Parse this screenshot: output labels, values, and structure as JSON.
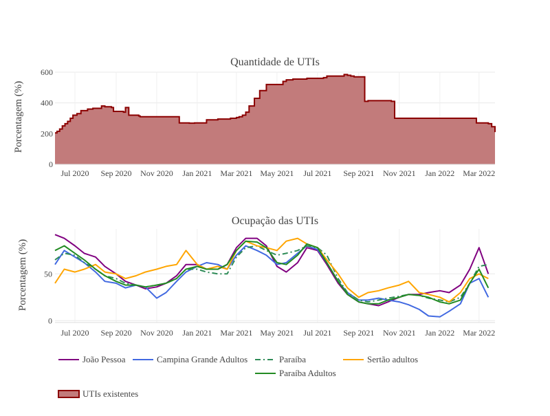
{
  "chart_data": [
    {
      "type": "area",
      "title": "Quantidade de UTIs",
      "xlabel": "",
      "ylabel": "Porcentagem (%)",
      "ylim": [
        0,
        600
      ],
      "yticks": [
        0,
        200,
        400,
        600
      ],
      "xticks": [
        {
          "label": "Jul 2020",
          "date": "2020-07-01"
        },
        {
          "label": "Sep 2020",
          "date": "2020-09-01"
        },
        {
          "label": "Nov 2020",
          "date": "2020-11-01"
        },
        {
          "label": "Jan 2021",
          "date": "2021-01-01"
        },
        {
          "label": "Mar 2021",
          "date": "2021-03-01"
        },
        {
          "label": "May 2021",
          "date": "2021-05-01"
        },
        {
          "label": "Jul 2021",
          "date": "2021-07-01"
        },
        {
          "label": "Sep 2021",
          "date": "2021-09-01"
        },
        {
          "label": "Nov 2021",
          "date": "2021-11-01"
        },
        {
          "label": "Jan 2022",
          "date": "2022-01-01"
        },
        {
          "label": "Mar 2022",
          "date": "2022-03-01"
        }
      ],
      "xlim": [
        "2020-06-01",
        "2022-03-25"
      ],
      "grid": true,
      "series": [
        {
          "name": "UTIs existentes",
          "color": "#8b0000",
          "fill": "#c27b7b",
          "x": [
            "2020-06-01",
            "2020-06-04",
            "2020-06-08",
            "2020-06-12",
            "2020-06-16",
            "2020-06-20",
            "2020-06-24",
            "2020-06-28",
            "2020-07-04",
            "2020-07-10",
            "2020-07-20",
            "2020-07-28",
            "2020-08-10",
            "2020-08-15",
            "2020-08-25",
            "2020-08-28",
            "2020-09-12",
            "2020-09-15",
            "2020-09-20",
            "2020-10-05",
            "2020-10-07",
            "2020-12-01",
            "2020-12-05",
            "2020-12-20",
            "2020-12-28",
            "2021-01-15",
            "2021-02-01",
            "2021-02-20",
            "2021-02-22",
            "2021-03-01",
            "2021-03-05",
            "2021-03-10",
            "2021-03-15",
            "2021-03-20",
            "2021-03-28",
            "2021-04-05",
            "2021-04-15",
            "2021-05-10",
            "2021-05-15",
            "2021-05-25",
            "2021-06-10",
            "2021-06-15",
            "2021-07-10",
            "2021-07-15",
            "2021-08-10",
            "2021-08-15",
            "2021-08-20",
            "2021-08-25",
            "2021-09-10",
            "2021-09-15",
            "2021-10-20",
            "2021-10-25",
            "2021-12-05",
            "2022-02-01",
            "2022-02-05",
            "2022-02-20",
            "2022-02-25",
            "2022-03-15",
            "2022-03-20",
            "2022-03-25"
          ],
          "values": [
            205,
            215,
            230,
            250,
            265,
            280,
            300,
            320,
            330,
            350,
            360,
            365,
            380,
            375,
            370,
            345,
            340,
            370,
            320,
            315,
            310,
            310,
            270,
            268,
            270,
            290,
            295,
            300,
            300,
            305,
            310,
            320,
            340,
            380,
            430,
            480,
            520,
            540,
            550,
            555,
            555,
            560,
            565,
            575,
            585,
            580,
            575,
            570,
            410,
            415,
            410,
            300,
            300,
            300,
            300,
            300,
            270,
            265,
            245,
            210
          ]
        }
      ]
    },
    {
      "type": "line",
      "title": "Ocupação das UTIs",
      "xlabel": "",
      "ylabel": "Porcentagem (%)",
      "ylim": [
        -2,
        98
      ],
      "yticks": [
        0,
        50
      ],
      "xticks": [
        {
          "label": "Jul 2020",
          "date": "2020-07-01"
        },
        {
          "label": "Sep 2020",
          "date": "2020-09-01"
        },
        {
          "label": "Nov 2020",
          "date": "2020-11-01"
        },
        {
          "label": "Jan 2021",
          "date": "2021-01-01"
        },
        {
          "label": "Mar 2021",
          "date": "2021-03-01"
        },
        {
          "label": "May 2021",
          "date": "2021-05-01"
        },
        {
          "label": "Jul 2021",
          "date": "2021-07-01"
        },
        {
          "label": "Sep 2021",
          "date": "2021-09-01"
        },
        {
          "label": "Nov 2021",
          "date": "2021-11-01"
        },
        {
          "label": "Jan 2022",
          "date": "2022-01-01"
        },
        {
          "label": "Mar 2022",
          "date": "2022-03-01"
        }
      ],
      "xlim": [
        "2020-06-01",
        "2022-03-25"
      ],
      "grid": true,
      "dates": [
        "2020-06-01",
        "2020-06-15",
        "2020-07-01",
        "2020-07-15",
        "2020-08-01",
        "2020-08-15",
        "2020-09-01",
        "2020-09-15",
        "2020-10-01",
        "2020-10-15",
        "2020-11-01",
        "2020-11-15",
        "2020-12-01",
        "2020-12-15",
        "2021-01-01",
        "2021-01-15",
        "2021-02-01",
        "2021-02-15",
        "2021-03-01",
        "2021-03-15",
        "2021-04-01",
        "2021-04-15",
        "2021-05-01",
        "2021-05-15",
        "2021-06-01",
        "2021-06-15",
        "2021-07-01",
        "2021-07-15",
        "2021-08-01",
        "2021-08-15",
        "2021-09-01",
        "2021-09-15",
        "2021-10-01",
        "2021-10-15",
        "2021-11-01",
        "2021-11-15",
        "2021-12-01",
        "2021-12-15",
        "2022-01-01",
        "2022-01-15",
        "2022-02-01",
        "2022-02-15",
        "2022-03-01",
        "2022-03-15"
      ],
      "series": [
        {
          "name": "João Pessoa",
          "color": "#800080",
          "dash": "",
          "values": [
            92,
            88,
            80,
            72,
            68,
            58,
            50,
            42,
            38,
            34,
            36,
            40,
            48,
            60,
            60,
            55,
            55,
            60,
            78,
            88,
            88,
            80,
            58,
            52,
            62,
            78,
            75,
            60,
            40,
            28,
            20,
            18,
            16,
            20,
            25,
            28,
            28,
            30,
            32,
            30,
            38,
            55,
            78,
            50
          ]
        },
        {
          "name": "Campina Grande Adultos",
          "color": "#4169e1",
          "dash": "",
          "values": [
            60,
            75,
            68,
            62,
            52,
            42,
            40,
            35,
            38,
            36,
            24,
            30,
            42,
            52,
            58,
            62,
            60,
            55,
            70,
            80,
            75,
            70,
            60,
            62,
            72,
            80,
            76,
            62,
            42,
            30,
            22,
            22,
            24,
            22,
            20,
            17,
            12,
            5,
            4,
            10,
            18,
            40,
            45,
            25
          ]
        },
        {
          "name": "Paraíba",
          "color": "#2e8b57",
          "dash": "8,4,2,4",
          "values": [
            65,
            72,
            70,
            62,
            55,
            48,
            45,
            40,
            38,
            36,
            38,
            40,
            45,
            55,
            55,
            52,
            50,
            50,
            68,
            78,
            80,
            75,
            70,
            72,
            75,
            80,
            78,
            70,
            45,
            30,
            22,
            20,
            22,
            24,
            26,
            28,
            27,
            24,
            22,
            20,
            25,
            40,
            58,
            60
          ]
        },
        {
          "name": "Sertão adultos",
          "color": "#ffa500",
          "dash": "",
          "values": [
            40,
            55,
            52,
            55,
            60,
            52,
            50,
            45,
            48,
            52,
            55,
            58,
            60,
            75,
            60,
            55,
            58,
            55,
            75,
            85,
            80,
            78,
            75,
            85,
            88,
            82,
            78,
            65,
            50,
            35,
            25,
            30,
            32,
            35,
            38,
            42,
            30,
            28,
            25,
            20,
            30,
            45,
            50,
            45
          ]
        },
        {
          "name": "Paraíba Adultos",
          "color": "#228b22",
          "dash": "",
          "values": [
            75,
            80,
            72,
            65,
            55,
            48,
            42,
            38,
            38,
            36,
            38,
            40,
            45,
            55,
            58,
            55,
            55,
            60,
            75,
            85,
            84,
            78,
            62,
            60,
            70,
            82,
            78,
            62,
            42,
            28,
            20,
            18,
            18,
            22,
            25,
            28,
            27,
            25,
            20,
            18,
            22,
            40,
            55,
            35
          ]
        }
      ]
    }
  ],
  "legend": {
    "items": [
      {
        "label": "João Pessoa",
        "color": "#800080",
        "dash": ""
      },
      {
        "label": "Campina Grande Adultos",
        "color": "#4169e1",
        "dash": ""
      },
      {
        "label": "Paraíba",
        "color": "#2e8b57",
        "dash": "8,4,2,4"
      },
      {
        "label": "Sertão adultos",
        "color": "#ffa500",
        "dash": ""
      },
      {
        "label": "Paraíba Adultos",
        "color": "#228b22",
        "dash": ""
      },
      {
        "label": "UTIs existentes",
        "color": "#8b0000",
        "fill": "#c27b7b"
      }
    ]
  }
}
